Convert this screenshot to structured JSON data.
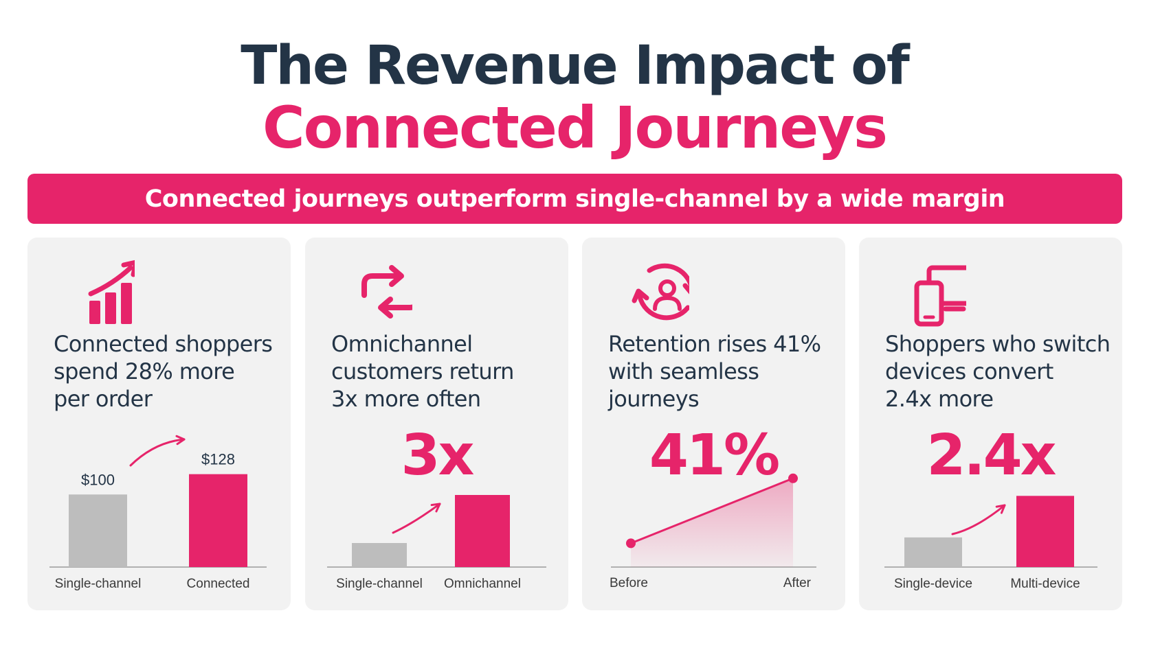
{
  "title": {
    "line1": "The Revenue Impact of",
    "line2": "Connected Journeys"
  },
  "banner": "Connected journeys outperform single-channel by a wide margin",
  "colors": {
    "accent": "#e6246a",
    "dark": "#233446",
    "gray": "#bdbdbd",
    "card": "#f2f2f2"
  },
  "cards": [
    {
      "icon": "bar-growth-icon",
      "headline": [
        "Connected shoppers",
        "spend 28% more",
        "per order"
      ],
      "big": ""
    },
    {
      "icon": "repeat-arrows-icon",
      "headline": [
        "Omnichannel",
        "customers return",
        "3x more often"
      ],
      "big": "3x"
    },
    {
      "icon": "user-refresh-icon",
      "headline": [
        "Retention rises 41%",
        "with seamless",
        "journeys"
      ],
      "big": "41%"
    },
    {
      "icon": "devices-icon",
      "headline": [
        "Shoppers who switch",
        "devices convert",
        "2.4x more"
      ],
      "big": "2.4x"
    }
  ],
  "chart_data": [
    {
      "type": "bar",
      "categories": [
        "Single-channel",
        "Connected"
      ],
      "values": [
        100,
        128
      ],
      "data_labels": [
        "$100",
        "$128"
      ],
      "ylim": [
        0,
        140
      ]
    },
    {
      "type": "bar",
      "categories": [
        "Single-channel",
        "Omnichannel"
      ],
      "values": [
        1,
        3
      ],
      "ylim": [
        0,
        3.2
      ]
    },
    {
      "type": "area",
      "x": [
        "Before",
        "After"
      ],
      "values": [
        1,
        1.41
      ],
      "ylim": [
        0.85,
        1.5
      ]
    },
    {
      "type": "bar",
      "categories": [
        "Single-device",
        "Multi-device"
      ],
      "values": [
        1,
        2.4
      ],
      "ylim": [
        0,
        2.5
      ]
    }
  ]
}
